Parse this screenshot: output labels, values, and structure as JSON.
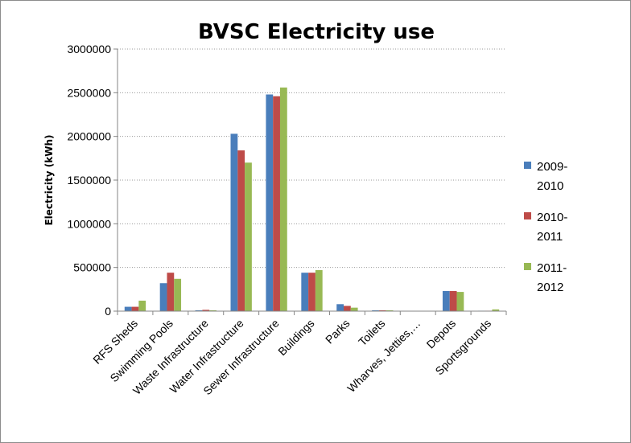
{
  "chart_data": {
    "type": "bar",
    "title": "BVSC Electricity use",
    "ylabel": "Electricity (kWh)",
    "xlabel": "",
    "ylim": [
      0,
      3000000
    ],
    "yticks": [
      0,
      500000,
      1000000,
      1500000,
      2000000,
      2500000,
      3000000
    ],
    "yticks_labels": [
      "0",
      "500000",
      "1000000",
      "1500000",
      "2000000",
      "2500000",
      "3000000"
    ],
    "grid": true,
    "legend_position": "right",
    "categories": [
      "RFS Sheds",
      "Swimming Pools",
      "Waste Infrastructure",
      "Water Infrastructure",
      "Sewer Infrastructure",
      "Buildings",
      "Parks",
      "Toilets",
      "Wharves, Jetties,…",
      "Depots",
      "Sportsgrounds"
    ],
    "series": [
      {
        "name": "2009-2010",
        "legend_lines": [
          "2009-",
          "2010"
        ],
        "color": "#4a7ebb",
        "values": [
          50000,
          320000,
          10000,
          2030000,
          2480000,
          440000,
          80000,
          10000,
          2000,
          230000,
          5000
        ]
      },
      {
        "name": "2010-2011",
        "legend_lines": [
          "2010-",
          "2011"
        ],
        "color": "#be4b48",
        "values": [
          50000,
          440000,
          15000,
          1840000,
          2460000,
          440000,
          60000,
          10000,
          2000,
          230000,
          5000
        ]
      },
      {
        "name": "2011-2012",
        "legend_lines": [
          "2011-",
          "2012"
        ],
        "color": "#98b954",
        "values": [
          120000,
          370000,
          10000,
          1700000,
          2560000,
          470000,
          40000,
          10000,
          2000,
          220000,
          20000
        ]
      }
    ]
  }
}
